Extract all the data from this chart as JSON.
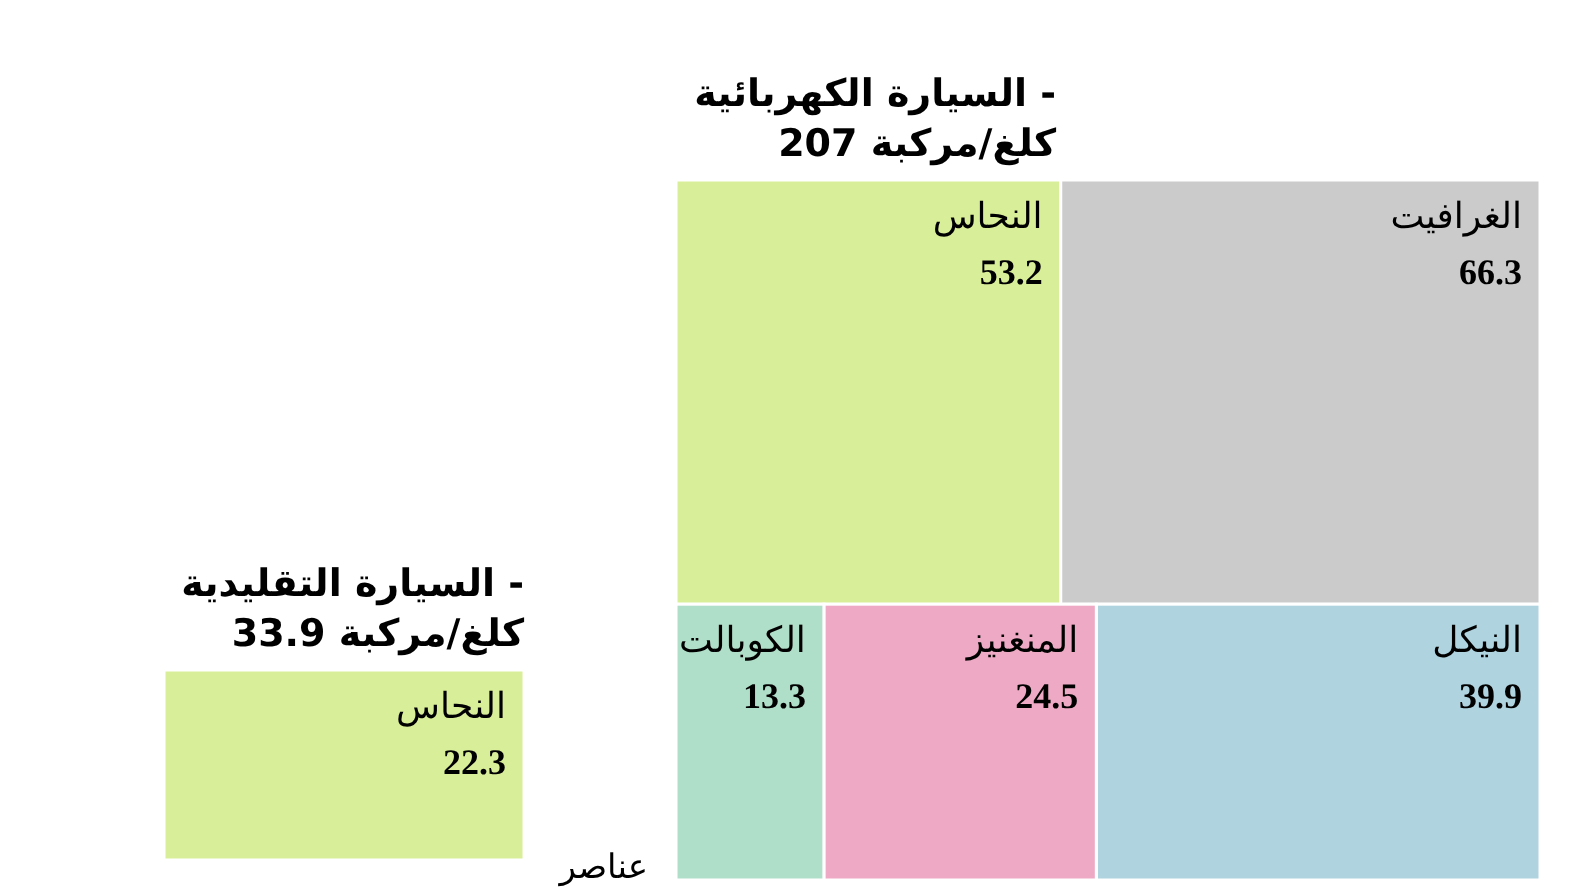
{
  "chart_data": [
    {
      "type": "other",
      "title": "السيارة الكهربائية - 207 كلغ/مركبة",
      "categories": [
        "الغرافيت",
        "النحاس",
        "النيكل",
        "المنغنيز",
        "الكوبالت"
      ],
      "values": [
        66.3,
        53.2,
        39.9,
        24.5,
        13.3
      ],
      "colors": [
        "#cbcbcb",
        "#d9ee98",
        "#afd3df",
        "#eeaac4",
        "#b0dfc9"
      ],
      "data_labels": true
    },
    {
      "type": "other",
      "title": "السيارة التقليدية - 33.9 كلغ/مركبة",
      "categories": [
        "النحاس"
      ],
      "values": [
        22.3
      ],
      "colors": [
        "#d9ee98"
      ],
      "data_labels": true,
      "annotations": [
        "عناصر"
      ]
    }
  ]
}
